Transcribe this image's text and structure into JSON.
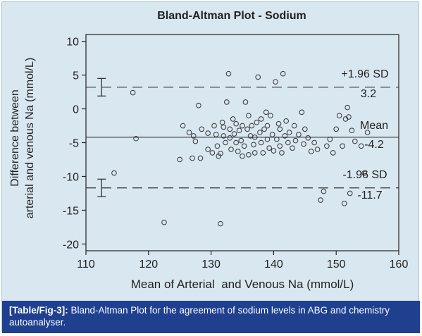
{
  "chart_data": {
    "type": "scatter",
    "title": "Bland-Altman Plot - Sodium",
    "xlabel": "Mean of Arterial  and Venous Na (mmol/L)",
    "ylabel_line1": "Difference between",
    "ylabel_line2": "arterial and venous Na (mmol/L)",
    "xlim": [
      110,
      160
    ],
    "ylim": [
      -21,
      11
    ],
    "x_ticks": [
      110,
      120,
      130,
      140,
      150,
      160
    ],
    "y_ticks": [
      10,
      5,
      0,
      -5,
      -10,
      -15,
      -20
    ],
    "grid": false,
    "marker": "open-circle",
    "reference_lines": [
      {
        "id": "upper",
        "style": "dashed",
        "y": 3.2,
        "label": "+1.96 SD",
        "value_label": "3.2"
      },
      {
        "id": "mean",
        "style": "solid",
        "y": -4.2,
        "label": "Mean",
        "value_label": "-4.2"
      },
      {
        "id": "lower",
        "style": "dashed",
        "y": -11.7,
        "label": "-1.96 SD",
        "value_label": "-11.7"
      }
    ],
    "error_bars": [
      {
        "x": 112.5,
        "center": 3.2,
        "low": 1.9,
        "high": 4.5
      },
      {
        "x": 112.5,
        "center": -11.7,
        "low": -13.0,
        "high": -10.4
      }
    ],
    "points": [
      [
        117.5,
        2.4
      ],
      [
        118,
        -4.4
      ],
      [
        114.5,
        -9.5
      ],
      [
        122.5,
        -16.8
      ],
      [
        131.5,
        -17.0
      ],
      [
        125,
        -7.5
      ],
      [
        125.5,
        -2.5
      ],
      [
        126.5,
        -3.5
      ],
      [
        127,
        -7.3
      ],
      [
        127.2,
        -4.0
      ],
      [
        127.5,
        -4.8
      ],
      [
        128,
        0.5
      ],
      [
        128.3,
        -7.3
      ],
      [
        128.5,
        -3.0
      ],
      [
        129.5,
        -3.6
      ],
      [
        129.5,
        -6.0
      ],
      [
        130.2,
        -6.5
      ],
      [
        130.5,
        -2.5
      ],
      [
        130.8,
        -3.8
      ],
      [
        131,
        -5.5
      ],
      [
        131.2,
        -7.0
      ],
      [
        131.5,
        -6.6
      ],
      [
        131.8,
        -2.0
      ],
      [
        132,
        -4.0
      ],
      [
        132,
        -2.7
      ],
      [
        132.3,
        -5.0
      ],
      [
        132.5,
        1.0
      ],
      [
        132.8,
        5.2
      ],
      [
        133,
        -4.3
      ],
      [
        133,
        -3.0
      ],
      [
        133.2,
        -6.0
      ],
      [
        133.5,
        -1.5
      ],
      [
        133.7,
        -3.7
      ],
      [
        134,
        -2.2
      ],
      [
        134,
        -5.0
      ],
      [
        134.3,
        -6.3
      ],
      [
        134.5,
        -3.2
      ],
      [
        134.8,
        -4.7
      ],
      [
        135,
        -2.5
      ],
      [
        135,
        -7.0
      ],
      [
        135.3,
        -5.5
      ],
      [
        135.5,
        1.0
      ],
      [
        135.8,
        -3.0
      ],
      [
        136,
        -6.8
      ],
      [
        136,
        -1.0
      ],
      [
        136.3,
        -4.0
      ],
      [
        136.5,
        -2.5
      ],
      [
        136.8,
        -5.3
      ],
      [
        137,
        -4.2
      ],
      [
        137,
        -6.5
      ],
      [
        137.3,
        -2.0
      ],
      [
        137.5,
        4.7
      ],
      [
        137.8,
        -3.5
      ],
      [
        138,
        -5.0
      ],
      [
        138,
        -1.5
      ],
      [
        138.3,
        -6.5
      ],
      [
        138.5,
        -3.0
      ],
      [
        138.8,
        -0.5
      ],
      [
        139,
        -4.5
      ],
      [
        139,
        -2.5
      ],
      [
        139.3,
        -5.8
      ],
      [
        139.5,
        -1.0
      ],
      [
        139.8,
        -3.8
      ],
      [
        140,
        -6.2
      ],
      [
        140.3,
        4.0
      ],
      [
        140.5,
        -4.5
      ],
      [
        140.8,
        -2.2
      ],
      [
        141,
        -5.5
      ],
      [
        141,
        -3.0
      ],
      [
        141.3,
        -6.5
      ],
      [
        141.5,
        5.2
      ],
      [
        141.8,
        -4.0
      ],
      [
        142,
        -1.8
      ],
      [
        142.3,
        -5.0
      ],
      [
        142.5,
        -3.5
      ],
      [
        143,
        -5.8
      ],
      [
        143.3,
        -2.5
      ],
      [
        143.5,
        -4.7
      ],
      [
        144,
        -3.8
      ],
      [
        144.5,
        -0.5
      ],
      [
        144.8,
        -5.2
      ],
      [
        145,
        -3.0
      ],
      [
        145.5,
        -4.3
      ],
      [
        146,
        -6.3
      ],
      [
        146.5,
        -5.0
      ],
      [
        147,
        -6.0
      ],
      [
        147.5,
        -13.5
      ],
      [
        148,
        -12.2
      ],
      [
        148.5,
        -5.5
      ],
      [
        149,
        -4.5
      ],
      [
        149.5,
        -6.5
      ],
      [
        150,
        -3.0
      ],
      [
        150.5,
        -1.0
      ],
      [
        151,
        -5.5
      ],
      [
        151.3,
        -14.0
      ],
      [
        151.5,
        -1.5
      ],
      [
        151.8,
        0.2
      ],
      [
        152,
        -1.2
      ],
      [
        152.2,
        -12.5
      ],
      [
        152.5,
        -3.2
      ],
      [
        153,
        -4.8
      ],
      [
        154,
        -5.5
      ],
      [
        154.5,
        -9.5
      ],
      [
        155,
        -3.5
      ]
    ]
  },
  "caption": {
    "ref": "[Table/Fig-3]:",
    "text": " Bland-Altman Plot for the agreement of sodium levels in ABG and chemistry autoanalyser."
  }
}
